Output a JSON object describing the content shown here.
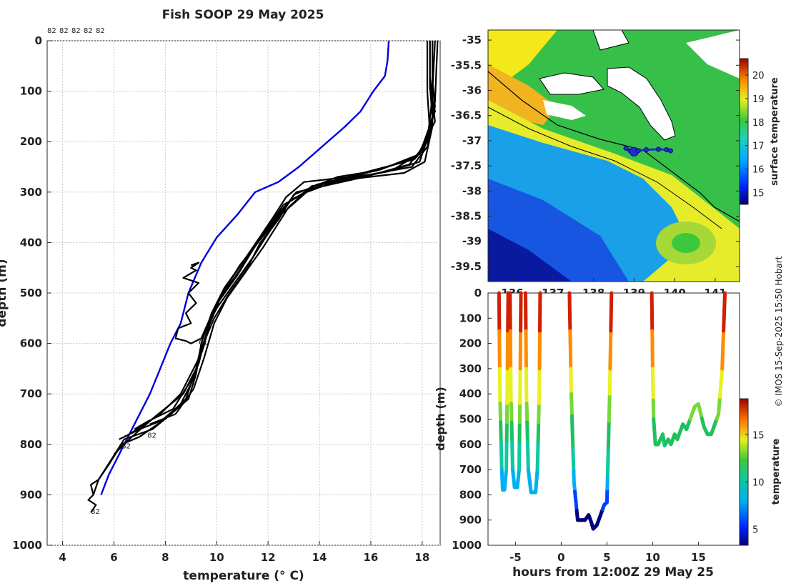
{
  "figure": {
    "title": "Fish SOOP 29 May 2025",
    "credit": "© IMOS 15-Sep-2025 15:50 Hobart",
    "colors": {
      "profile": "#000000",
      "climatology": "#0000e0",
      "grid": "#bbbbbb",
      "track": "#1f2fd0"
    }
  },
  "chart_data": [
    {
      "id": "profiles",
      "type": "line",
      "title": "Fish SOOP 29 May 2025",
      "xlabel": "temperature (° C)",
      "ylabel": "depth (m)",
      "xlim": [
        3.4,
        18.7
      ],
      "ylim": [
        0,
        1000
      ],
      "y_reversed": true,
      "grid": true,
      "xticks": [
        4,
        6,
        8,
        10,
        12,
        14,
        16,
        18
      ],
      "yticks": [
        0,
        100,
        200,
        300,
        400,
        500,
        600,
        700,
        800,
        900,
        1000
      ],
      "top_labels": [
        "82",
        "82",
        "82",
        "82",
        "82"
      ],
      "point_labels": [
        {
          "text": "61",
          "t": 9.3,
          "d": 603
        },
        {
          "text": "82",
          "t": 7.3,
          "d": 787
        },
        {
          "text": "82",
          "t": 6.3,
          "d": 808
        },
        {
          "text": "82",
          "t": 5.1,
          "d": 938
        }
      ],
      "series": [
        {
          "name": "climatology",
          "color": "#0000e0",
          "t": [
            16.7,
            16.65,
            16.55,
            16.1,
            15.6,
            15.0,
            14.1,
            13.2,
            12.4,
            11.5,
            10.8,
            10.0,
            9.4,
            8.9,
            8.6,
            8.2,
            7.8,
            7.4,
            7.0,
            6.6,
            6.2,
            5.8,
            5.5
          ],
          "d": [
            0,
            40,
            70,
            100,
            140,
            170,
            210,
            250,
            280,
            300,
            345,
            390,
            440,
            500,
            560,
            600,
            650,
            700,
            740,
            780,
            820,
            860,
            900
          ]
        },
        {
          "name": "profile 1",
          "t": [
            18.4,
            18.4,
            18.5,
            18.2,
            17.6,
            16.0,
            13.4,
            12.7,
            12.2,
            11.6,
            11.0,
            10.3,
            9.8,
            9.4,
            9.2,
            8.9,
            8.1,
            7.5,
            6.4,
            5.9,
            5.4,
            5.2
          ],
          "d": [
            0,
            80,
            130,
            210,
            250,
            265,
            280,
            310,
            350,
            395,
            440,
            490,
            540,
            600,
            660,
            710,
            745,
            770,
            790,
            830,
            870,
            900
          ]
        },
        {
          "name": "profile 2",
          "t": [
            18.3,
            18.3,
            18.4,
            18.0,
            16.9,
            15.3,
            13.1,
            12.5,
            11.9,
            11.3,
            10.6,
            10.0,
            9.6,
            9.3,
            8.7,
            7.6,
            6.7,
            6.0
          ],
          "d": [
            0,
            90,
            150,
            220,
            255,
            275,
            300,
            340,
            380,
            420,
            470,
            520,
            580,
            640,
            700,
            745,
            785,
            820
          ]
        },
        {
          "name": "profile 3",
          "t": [
            18.5,
            18.4,
            18.4,
            18.1,
            17.3,
            15.6,
            13.7,
            12.8,
            12.3,
            11.8,
            11.1,
            10.4,
            9.9,
            9.5,
            9.1,
            8.4,
            7.4
          ],
          "d": [
            0,
            100,
            170,
            240,
            262,
            272,
            288,
            330,
            370,
            410,
            460,
            510,
            560,
            630,
            690,
            740,
            760
          ]
        },
        {
          "name": "profile 4",
          "t": [
            18.3,
            18.3,
            18.5,
            17.8,
            16.2,
            14.7,
            13.0,
            12.4,
            11.7,
            11.2,
            10.5,
            9.9,
            9.4,
            9.1,
            8.6,
            7.7,
            7.0,
            6.3,
            5.8,
            5.4,
            5.1,
            5.2,
            5.0,
            5.3,
            5.1
          ],
          "d": [
            0,
            70,
            160,
            230,
            258,
            270,
            305,
            355,
            400,
            450,
            500,
            550,
            610,
            670,
            720,
            760,
            785,
            800,
            840,
            870,
            880,
            900,
            910,
            920,
            935
          ]
        },
        {
          "name": "profile 5",
          "t": [
            18.2,
            18.2,
            18.3,
            17.9,
            16.6,
            14.3,
            12.9,
            12.2,
            11.5,
            10.9,
            10.2,
            9.7,
            9.4,
            9.0,
            8.8,
            8.4,
            8.5,
            9.0,
            8.8,
            9.2,
            8.9,
            9.3,
            8.7,
            9.2,
            9.0,
            9.3,
            9.0
          ],
          "d": [
            0,
            100,
            180,
            240,
            260,
            280,
            315,
            365,
            405,
            455,
            505,
            555,
            590,
            600,
            595,
            590,
            570,
            560,
            540,
            520,
            500,
            480,
            470,
            455,
            450,
            440,
            445
          ]
        },
        {
          "name": "profile 6",
          "t": [
            18.4,
            18.4,
            18.2,
            17.5,
            15.9,
            13.8,
            12.6,
            12.0,
            11.4,
            10.8,
            10.1,
            9.7,
            9.3,
            8.6,
            7.8,
            7.2,
            6.6,
            6.2
          ],
          "d": [
            0,
            110,
            200,
            245,
            268,
            292,
            325,
            370,
            415,
            465,
            515,
            565,
            630,
            700,
            740,
            760,
            780,
            790
          ]
        },
        {
          "name": "profile 7",
          "t": [
            18.6,
            18.5,
            18.3,
            17.7,
            15.1,
            13.5,
            12.5,
            11.9,
            11.4,
            10.7,
            10.0,
            9.5,
            9.2,
            8.8,
            8.0,
            7.0,
            6.4
          ],
          "d": [
            0,
            120,
            190,
            235,
            270,
            300,
            345,
            390,
            430,
            480,
            530,
            580,
            650,
            710,
            750,
            770,
            785
          ]
        },
        {
          "name": "profile 8",
          "t": [
            18.3,
            18.3,
            18.5,
            17.9,
            16.4,
            13.9,
            12.8,
            12.1,
            11.6,
            10.9,
            10.3,
            9.8,
            9.5,
            9.1,
            8.3,
            7.3,
            6.8
          ],
          "d": [
            0,
            95,
            140,
            225,
            255,
            285,
            320,
            360,
            400,
            445,
            495,
            545,
            605,
            665,
            730,
            755,
            770
          ]
        }
      ]
    },
    {
      "id": "sst_map",
      "type": "heatmap",
      "title": "",
      "colorbar_label": "surface temperature",
      "colorbar_ticks": [
        15,
        16,
        17,
        18,
        19,
        20
      ],
      "colorbar_range": [
        14.5,
        20.7
      ],
      "xlim": [
        135.4,
        141.6
      ],
      "ylim": [
        -39.8,
        -34.8
      ],
      "xticks": [
        136,
        137,
        138,
        139,
        140,
        141
      ],
      "yticks": [
        -35,
        -35.5,
        -36,
        -36.5,
        -37,
        -37.5,
        -38,
        -38.5,
        -39,
        -39.5
      ],
      "ytick_labels": [
        "-35",
        "-35.5",
        "-36",
        "-36.5",
        "-37",
        "-37.5",
        "-38",
        "-38.5",
        "-39",
        "-39.5"
      ],
      "track_lon": [
        138.8,
        138.9,
        139.0,
        139.1,
        139.3,
        139.6,
        139.8,
        139.9
      ],
      "track_lat": [
        -37.15,
        -37.2,
        -37.22,
        -37.2,
        -37.18,
        -37.17,
        -37.18,
        -37.2
      ]
    },
    {
      "id": "depth_time",
      "type": "scatter",
      "xlabel": "hours from 12:00Z 29 May 25",
      "ylabel": "depth (m)",
      "xlim": [
        -8,
        19.5
      ],
      "ylim": [
        0,
        1000
      ],
      "y_reversed": true,
      "xticks": [
        -5,
        0,
        5,
        10,
        15
      ],
      "yticks": [
        0,
        100,
        200,
        300,
        400,
        500,
        600,
        700,
        800,
        900,
        1000
      ],
      "colorbar_label": "temperature",
      "colorbar_ticks": [
        5,
        10,
        15
      ],
      "colorbar_range": [
        3.3,
        18.8
      ],
      "dives": [
        {
          "t": [
            -6.8,
            -6.7,
            -6.5,
            -6.4,
            -6.2,
            -6.0,
            -5.9,
            -5.8
          ],
          "d": [
            0,
            400,
            700,
            780,
            780,
            700,
            400,
            0
          ]
        },
        {
          "t": [
            -5.6,
            -5.5,
            -5.3,
            -5.1,
            -4.8,
            -4.6,
            -4.5,
            -4.4
          ],
          "d": [
            0,
            400,
            700,
            770,
            770,
            700,
            400,
            0
          ]
        },
        {
          "t": [
            -3.9,
            -3.8,
            -3.6,
            -3.3,
            -2.8,
            -2.6,
            -2.4,
            -2.3
          ],
          "d": [
            0,
            400,
            700,
            790,
            790,
            700,
            400,
            0
          ]
        },
        {
          "t": [
            0.9,
            1.1,
            1.4,
            1.8,
            2.6,
            3.0,
            3.3,
            3.5,
            3.9,
            4.4,
            4.7,
            5.0,
            5.3,
            5.5
          ],
          "d": [
            0,
            400,
            750,
            900,
            900,
            880,
            910,
            935,
            920,
            870,
            840,
            830,
            400,
            0
          ]
        },
        {
          "t": [
            9.9,
            10.0,
            10.1,
            10.3,
            10.6,
            11.1,
            11.3,
            11.7,
            12.0,
            12.4,
            12.7,
            13.3,
            13.7,
            14.1,
            14.6,
            15.0,
            15.6,
            16.0,
            16.4,
            16.9,
            17.2,
            17.6,
            17.8,
            17.9
          ],
          "d": [
            0,
            300,
            500,
            600,
            600,
            560,
            605,
            580,
            600,
            560,
            580,
            520,
            540,
            500,
            450,
            440,
            530,
            560,
            560,
            510,
            480,
            300,
            100,
            0
          ]
        }
      ]
    }
  ]
}
